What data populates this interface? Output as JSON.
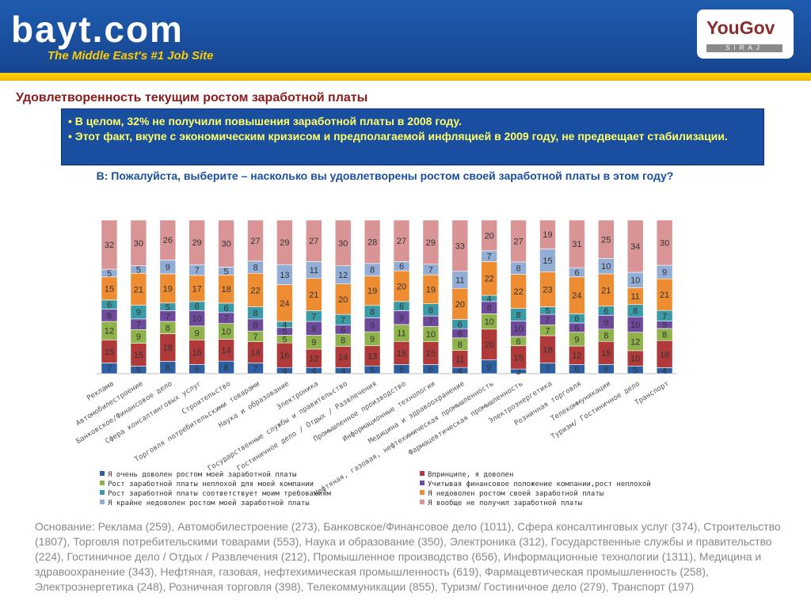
{
  "header": {
    "logo": "bayt.com",
    "tagline": "The Middle East's #1 Job Site",
    "partner_logo": "YouGov",
    "partner_sub": "SIRAJ"
  },
  "page_title": "Удовлетворенность текущим ростом заработной платы",
  "notes": [
    "• В целом, 32% не получили повышения заработной платы в 2008 году.",
    "• Этот факт, вкупе с экономическим кризисом и предполагаемой инфляцией в 2009 году, не предвещает стабилизации."
  ],
  "question": "В: Пожалуйста, выберите – насколько вы удовлетворены ростом своей заработной платы в этом году?",
  "footer": "Основание: Реклама (259), Автомобилестроение (273), Банковское/Финансовое дело (1011), Сфера консалтинговых услуг (374), Строительство (1807), Торговля потребительскими товарами (553), Наука и образование (350), Электроника (312), Государственные службы и правительство (224), Гостиничное дело / Отдых / Развлечения (212), Промышленное производство (656), Информационные технологии (1311), Медицина и здравоохранение (343), Нефтяная, газовая, нефтехимическая промышленность (619), Фармацевтическая промышленность (258), Электроэнергетика (248), Розничная торговля (398), Телекоммуникации (855), Туризм/ Гостиничное дело (279), Транспорт (197)",
  "chart_data": {
    "type": "bar",
    "stacked": true,
    "categories": [
      "Реклама",
      "Автомобилестроение",
      "Банковское/Финансовое дело",
      "Сфера консалтинговых услуг",
      "Строительство",
      "Торговля потребительскими товарами",
      "Наука и образование",
      "Электроника",
      "Государственные службы и правительство",
      "Гостиничное дело / Отдых / Развлечения",
      "Промышленное производство",
      "Информационные технологии",
      "Медицина и здравоохранение",
      "Нефтяная, газовая, нефтехимическая промышленность",
      "Фармацевтическая промышленность",
      "Электроэнергетика",
      "Розничная торговля",
      "Телекоммуникации",
      "Туризм/ Гостиничное дело",
      "Транспорт"
    ],
    "series": [
      {
        "name": "Я очень доволен ростом моей заработной платы",
        "color": "#2e5fa3",
        "values": [
          7,
          5,
          8,
          6,
          8,
          7,
          4,
          4,
          4,
          5,
          6,
          6,
          4,
          9,
          3,
          7,
          6,
          6,
          5,
          4
        ]
      },
      {
        "name": "Впринципе, я доволен",
        "color": "#b03a3a",
        "values": [
          15,
          15,
          18,
          16,
          14,
          14,
          16,
          12,
          14,
          13,
          15,
          15,
          11,
          20,
          15,
          18,
          12,
          15,
          10,
          18
        ]
      },
      {
        "name": "Рост заработной платы неплохой для моей компании",
        "color": "#8fb24a",
        "values": [
          12,
          9,
          8,
          9,
          10,
          7,
          5,
          9,
          8,
          9,
          11,
          10,
          8,
          10,
          6,
          7,
          9,
          8,
          12,
          8
        ]
      },
      {
        "name": "Учитывая финансовое положение компании,рост неплохой",
        "color": "#6e4a9c",
        "values": [
          8,
          7,
          7,
          10,
          7,
          8,
          5,
          9,
          6,
          9,
          9,
          7,
          6,
          8,
          10,
          7,
          6,
          9,
          10,
          5
        ]
      },
      {
        "name": "Рост заработной платы соответствует моим требованиям",
        "color": "#3a9ba6",
        "values": [
          6,
          9,
          5,
          6,
          6,
          8,
          4,
          7,
          7,
          8,
          6,
          8,
          6,
          4,
          8,
          5,
          6,
          6,
          8,
          7
        ]
      },
      {
        "name": "Я недоволен ростом своей заработной платы",
        "color": "#ee8c32",
        "values": [
          15,
          21,
          19,
          17,
          18,
          22,
          24,
          21,
          20,
          19,
          20,
          19,
          20,
          22,
          22,
          23,
          24,
          21,
          11,
          21
        ]
      },
      {
        "name": "Я крайне недоволен ростом моей заработной платы",
        "color": "#92aed6",
        "values": [
          5,
          5,
          9,
          7,
          5,
          8,
          13,
          11,
          12,
          8,
          6,
          7,
          11,
          7,
          8,
          15,
          6,
          10,
          10,
          9
        ]
      },
      {
        "name": "Я вообще не получил заработной платы",
        "color": "#d99495",
        "values": [
          32,
          30,
          26,
          29,
          30,
          27,
          29,
          27,
          30,
          28,
          27,
          29,
          33,
          20,
          27,
          19,
          31,
          25,
          34,
          30
        ]
      }
    ],
    "legend_order": [
      0,
      1,
      2,
      3,
      4,
      5,
      6,
      7
    ],
    "ylim": [
      0,
      100
    ],
    "grid": false,
    "legend_position": "bottom"
  }
}
